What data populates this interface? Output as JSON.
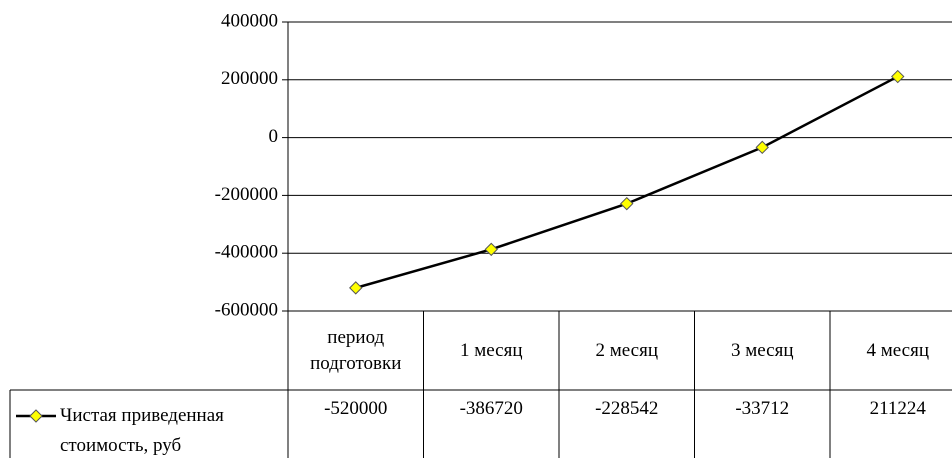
{
  "chart_data": {
    "type": "line",
    "categories": [
      "период подготовки",
      "1 месяц",
      "2 месяц",
      "3 месяц",
      "4 месяц"
    ],
    "series": [
      {
        "name": "Чистая приведенная стоимость, руб",
        "color": "#000000",
        "marker_color": "#ffff00",
        "values": [
          -520000,
          -386720,
          -228542,
          -33712,
          211224
        ]
      }
    ],
    "ylim": [
      -600000,
      400000
    ],
    "yticks": [
      -600000,
      -400000,
      -200000,
      0,
      200000,
      400000
    ],
    "grid": true,
    "legend": "data-table"
  }
}
